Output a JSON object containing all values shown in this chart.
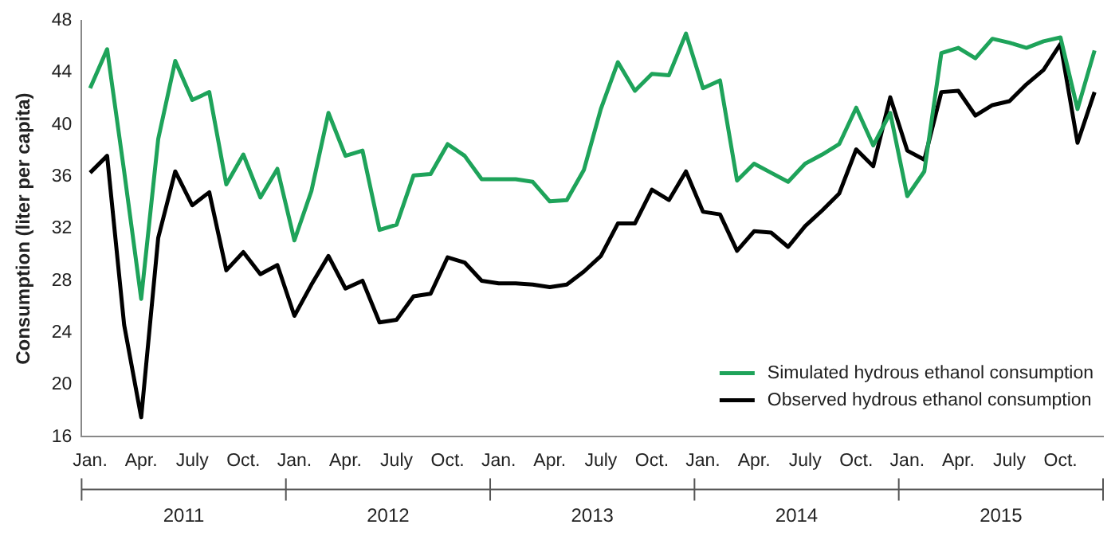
{
  "chart_data": {
    "type": "line",
    "ylabel": "Consumption (liter per capita)",
    "categories": [
      "Jan.",
      null,
      null,
      "Apr.",
      null,
      null,
      "July",
      null,
      null,
      "Oct.",
      null,
      null,
      "Jan.",
      null,
      null,
      "Apr.",
      null,
      null,
      "July",
      null,
      null,
      "Oct.",
      null,
      null,
      "Jan.",
      null,
      null,
      "Apr.",
      null,
      null,
      "July",
      null,
      null,
      "Oct.",
      null,
      null,
      "Jan.",
      null,
      null,
      "Apr.",
      null,
      null,
      "July",
      null,
      null,
      "Oct.",
      null,
      null,
      "Jan.",
      null,
      null,
      "Apr.",
      null,
      null,
      "July",
      null,
      null,
      "Oct.",
      null,
      null
    ],
    "series": [
      {
        "name": "Simulated hydrous ethanol consumption",
        "color": "#1ea35a",
        "values": [
          42.8,
          45.8,
          36.4,
          26.6,
          38.9,
          44.9,
          41.9,
          42.5,
          35.4,
          37.7,
          34.4,
          36.6,
          31.1,
          34.9,
          40.9,
          37.6,
          38,
          31.9,
          32.3,
          36.1,
          36.2,
          38.5,
          37.6,
          35.8,
          35.8,
          35.8,
          35.6,
          34.1,
          34.2,
          36.5,
          41.2,
          44.8,
          42.6,
          43.9,
          43.8,
          47.0,
          42.8,
          43.4,
          35.7,
          37,
          36.3,
          35.6,
          37,
          37.7,
          38.5,
          41.3,
          38.4,
          40.9,
          34.5,
          36.4,
          45.5,
          45.9,
          45.1,
          46.6,
          46.3,
          45.9,
          46.4,
          46.7,
          41.2,
          45.7
        ]
      },
      {
        "name": "Observed hydrous ethanol consumption",
        "color": "#000000",
        "values": [
          36.3,
          37.6,
          24.6,
          17.5,
          31.3,
          36.4,
          33.8,
          34.8,
          28.8,
          30.2,
          28.5,
          29.2,
          25.3,
          27.7,
          29.9,
          27.4,
          28,
          24.8,
          25,
          26.8,
          27,
          29.8,
          29.4,
          28,
          27.8,
          27.8,
          27.7,
          27.5,
          27.7,
          28.7,
          29.9,
          32.4,
          32.4,
          35,
          34.2,
          36.4,
          33.3,
          33.1,
          30.3,
          31.8,
          31.7,
          30.6,
          32.2,
          33.4,
          34.7,
          38.1,
          36.8,
          42.1,
          38,
          37.3,
          42.5,
          42.6,
          40.7,
          41.5,
          41.8,
          43.1,
          44.2,
          46.2,
          38.6,
          42.5
        ]
      }
    ],
    "ylim": [
      16,
      48
    ],
    "yticks": [
      16,
      20,
      24,
      28,
      32,
      36,
      40,
      44,
      48
    ],
    "grid": false,
    "legend": "bottom right",
    "marker": "none",
    "line_style": "solid",
    "annotations": [
      "2011",
      "2012",
      "2013",
      "2014",
      "2015"
    ]
  }
}
